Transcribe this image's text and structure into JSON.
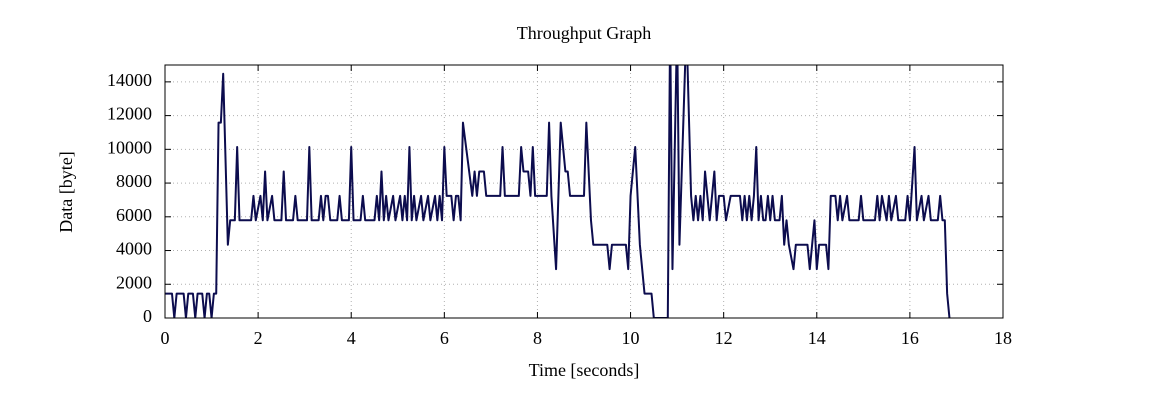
{
  "chart_data": {
    "type": "line",
    "title": "Throughput Graph",
    "x_label": "Time [seconds]",
    "y_label": "Data [byte]",
    "x": [
      0,
      0.15,
      0.2,
      0.25,
      0.4,
      0.45,
      0.5,
      0.6,
      0.65,
      0.7,
      0.8,
      0.85,
      0.9,
      0.95,
      1.0,
      1.05,
      1.1,
      1.15,
      1.2,
      1.25,
      1.35,
      1.4,
      1.5,
      1.55,
      1.6,
      1.85,
      1.9,
      1.95,
      2.05,
      2.1,
      2.15,
      2.2,
      2.3,
      2.35,
      2.5,
      2.55,
      2.6,
      2.75,
      2.8,
      2.85,
      3.05,
      3.1,
      3.15,
      3.3,
      3.35,
      3.4,
      3.45,
      3.5,
      3.55,
      3.7,
      3.75,
      3.8,
      3.95,
      4.0,
      4.05,
      4.2,
      4.25,
      4.3,
      4.5,
      4.55,
      4.6,
      4.65,
      4.7,
      4.75,
      4.8,
      4.9,
      4.95,
      5.05,
      5.1,
      5.15,
      5.2,
      5.25,
      5.3,
      5.35,
      5.4,
      5.5,
      5.55,
      5.65,
      5.7,
      5.8,
      5.85,
      5.9,
      5.95,
      6.0,
      6.05,
      6.15,
      6.2,
      6.25,
      6.3,
      6.35,
      6.4,
      6.6,
      6.65,
      6.7,
      6.75,
      6.85,
      6.9,
      7.2,
      7.25,
      7.3,
      7.6,
      7.65,
      7.7,
      7.8,
      7.85,
      7.9,
      7.95,
      8.2,
      8.25,
      8.3,
      8.4,
      8.5,
      8.6,
      8.65,
      8.7,
      9.0,
      9.05,
      9.15,
      9.2,
      9.5,
      9.55,
      9.6,
      9.9,
      9.95,
      10.0,
      10.1,
      10.2,
      10.3,
      10.45,
      10.5,
      10.8,
      10.85,
      10.9,
      11.0,
      11.05,
      11.2,
      11.3,
      11.35,
      11.4,
      11.45,
      11.5,
      11.55,
      11.6,
      11.65,
      11.7,
      11.75,
      11.8,
      11.85,
      11.9,
      12.0,
      12.05,
      12.15,
      12.35,
      12.4,
      12.45,
      12.5,
      12.55,
      12.6,
      12.65,
      12.7,
      12.75,
      12.8,
      12.85,
      12.9,
      12.95,
      13.0,
      13.05,
      13.1,
      13.2,
      13.25,
      13.3,
      13.35,
      13.4,
      13.5,
      13.55,
      13.8,
      13.85,
      13.9,
      13.95,
      14.0,
      14.05,
      14.2,
      14.25,
      14.3,
      14.4,
      14.45,
      14.5,
      14.55,
      14.65,
      14.7,
      14.9,
      14.95,
      15.0,
      15.25,
      15.3,
      15.35,
      15.4,
      15.5,
      15.55,
      15.6,
      15.7,
      15.75,
      15.9,
      15.95,
      16.0,
      16.1,
      16.15,
      16.25,
      16.3,
      16.4,
      16.45,
      16.6,
      16.65,
      16.7,
      16.75,
      16.8,
      16.85
    ],
    "series": [
      {
        "color": "#0c0c4e",
        "values": [
          1448,
          1448,
          0,
          1448,
          1448,
          0,
          1448,
          1448,
          0,
          1448,
          1448,
          0,
          1448,
          1448,
          0,
          1448,
          1448,
          11584,
          11584,
          14480,
          4344,
          5792,
          5792,
          10136,
          5792,
          5792,
          7240,
          5792,
          7240,
          5792,
          8688,
          5792,
          7240,
          5792,
          5792,
          8688,
          5792,
          5792,
          7240,
          5792,
          5792,
          10136,
          5792,
          5792,
          7240,
          5792,
          7240,
          7240,
          5792,
          5792,
          7240,
          5792,
          5792,
          10136,
          5792,
          5792,
          7240,
          5792,
          5792,
          7240,
          5792,
          8688,
          5792,
          7240,
          5792,
          7240,
          5792,
          7240,
          5792,
          7240,
          5792,
          10136,
          5792,
          7240,
          5792,
          7240,
          5792,
          7240,
          5792,
          7240,
          5792,
          7240,
          5792,
          10136,
          7240,
          7240,
          5792,
          7240,
          7240,
          5792,
          11584,
          7240,
          8688,
          7240,
          8688,
          8688,
          7240,
          7240,
          10136,
          7240,
          7240,
          10136,
          8688,
          8688,
          7240,
          10136,
          7240,
          7240,
          11584,
          7240,
          2896,
          11584,
          8688,
          8688,
          7240,
          7240,
          11584,
          5792,
          4344,
          4344,
          2896,
          4344,
          4344,
          2896,
          7240,
          10136,
          4344,
          1448,
          1448,
          0,
          0,
          17376,
          2896,
          17376,
          4344,
          17376,
          7240,
          5792,
          7240,
          5792,
          7240,
          5792,
          8688,
          7240,
          5792,
          7240,
          8688,
          5792,
          7240,
          7240,
          5792,
          7240,
          7240,
          5792,
          7240,
          5792,
          7240,
          5792,
          7240,
          10136,
          5792,
          7240,
          5792,
          5792,
          7240,
          5792,
          7240,
          5792,
          5792,
          7240,
          4344,
          5792,
          4344,
          2896,
          4344,
          4344,
          2896,
          4344,
          5792,
          2896,
          4344,
          4344,
          2896,
          7240,
          7240,
          5792,
          7240,
          5792,
          7240,
          5792,
          5792,
          7240,
          5792,
          5792,
          7240,
          5792,
          7240,
          5792,
          7240,
          5792,
          7240,
          5792,
          5792,
          7240,
          5792,
          10136,
          5792,
          7240,
          5792,
          7240,
          5792,
          5792,
          7240,
          5792,
          5792,
          1448,
          0
        ]
      }
    ],
    "xlim": [
      0,
      18
    ],
    "xticks": [
      0,
      2,
      4,
      6,
      8,
      10,
      12,
      14,
      16,
      18
    ],
    "ylim": [
      0,
      15000
    ],
    "yticks": [
      0,
      2000,
      4000,
      6000,
      8000,
      10000,
      12000,
      14000
    ],
    "grid": true
  }
}
